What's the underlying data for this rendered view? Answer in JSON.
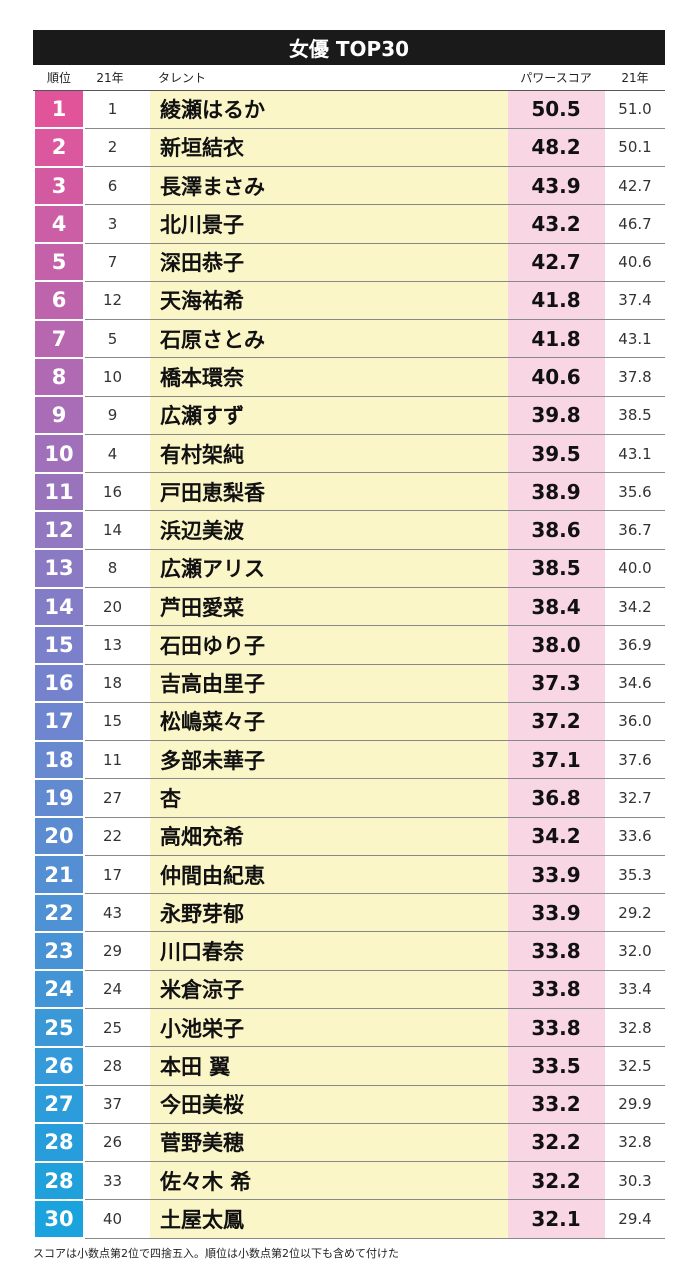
{
  "header": {
    "title": "女優 TOP30"
  },
  "table": {
    "columns": [
      "順位",
      "21年",
      "タレント",
      "パワースコア",
      "21年"
    ],
    "rows": [
      [
        "1",
        "1",
        "綾瀬はるか",
        "50.5",
        "51.0"
      ],
      [
        "2",
        "2",
        "新垣結衣",
        "48.2",
        "50.1"
      ],
      [
        "3",
        "6",
        "長澤まさみ",
        "43.9",
        "42.7"
      ],
      [
        "4",
        "3",
        "北川景子",
        "43.2",
        "46.7"
      ],
      [
        "5",
        "7",
        "深田恭子",
        "42.7",
        "40.6"
      ],
      [
        "6",
        "12",
        "天海祐希",
        "41.8",
        "37.4"
      ],
      [
        "7",
        "5",
        "石原さとみ",
        "41.8",
        "43.1"
      ],
      [
        "8",
        "10",
        "橋本環奈",
        "40.6",
        "37.8"
      ],
      [
        "9",
        "9",
        "広瀬すず",
        "39.8",
        "38.5"
      ],
      [
        "10",
        "4",
        "有村架純",
        "39.5",
        "43.1"
      ],
      [
        "11",
        "16",
        "戸田恵梨香",
        "38.9",
        "35.6"
      ],
      [
        "12",
        "14",
        "浜辺美波",
        "38.6",
        "36.7"
      ],
      [
        "13",
        "8",
        "広瀬アリス",
        "38.5",
        "40.0"
      ],
      [
        "14",
        "20",
        "芦田愛菜",
        "38.4",
        "34.2"
      ],
      [
        "15",
        "13",
        "石田ゆり子",
        "38.0",
        "36.9"
      ],
      [
        "16",
        "18",
        "吉高由里子",
        "37.3",
        "34.6"
      ],
      [
        "17",
        "15",
        "松嶋菜々子",
        "37.2",
        "36.0"
      ],
      [
        "18",
        "11",
        "多部未華子",
        "37.1",
        "37.6"
      ],
      [
        "19",
        "27",
        "杏",
        "36.8",
        "32.7"
      ],
      [
        "20",
        "22",
        "高畑充希",
        "34.2",
        "33.6"
      ],
      [
        "21",
        "17",
        "仲間由紀恵",
        "33.9",
        "35.3"
      ],
      [
        "22",
        "43",
        "永野芽郁",
        "33.9",
        "29.2"
      ],
      [
        "23",
        "29",
        "川口春奈",
        "33.8",
        "32.0"
      ],
      [
        "24",
        "24",
        "米倉涼子",
        "33.8",
        "33.4"
      ],
      [
        "25",
        "25",
        "小池栄子",
        "33.8",
        "32.8"
      ],
      [
        "26",
        "28",
        "本田 翼",
        "33.5",
        "32.5"
      ],
      [
        "27",
        "37",
        "今田美桜",
        "33.2",
        "29.9"
      ],
      [
        "28",
        "26",
        "菅野美穂",
        "32.2",
        "32.8"
      ],
      [
        "28",
        "33",
        "佐々木 希",
        "32.2",
        "30.3"
      ],
      [
        "30",
        "40",
        "土屋太鳳",
        "32.1",
        "29.4"
      ]
    ]
  },
  "footer": {
    "note": "スコアは小数点第2位で四捨五入。順位は小数点第2位以下も含めて付けた"
  }
}
